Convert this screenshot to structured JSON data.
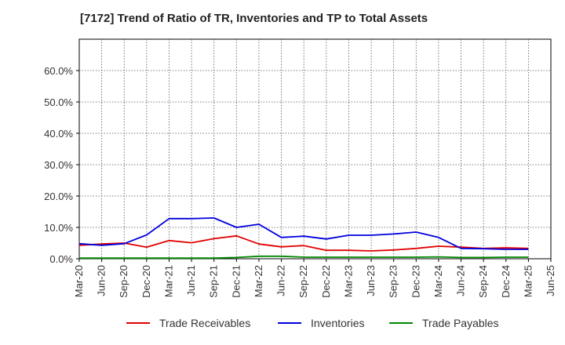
{
  "chart_data": {
    "type": "line",
    "title": "[7172]  Trend of Ratio of TR, Inventories and TP to Total Assets",
    "xlabel": "",
    "ylabel": "",
    "ylim": [
      0,
      0.7
    ],
    "yticks": [
      0,
      0.1,
      0.2,
      0.3,
      0.4,
      0.5,
      0.6
    ],
    "y_tick_labels": [
      "0.0%",
      "10.0%",
      "20.0%",
      "30.0%",
      "40.0%",
      "50.0%",
      "60.0%"
    ],
    "x_tick_labels": [
      "Mar-20",
      "Jun-20",
      "Sep-20",
      "Dec-20",
      "Mar-21",
      "Jun-21",
      "Sep-21",
      "Dec-21",
      "Mar-22",
      "Jun-22",
      "Sep-22",
      "Dec-22",
      "Mar-23",
      "Jun-23",
      "Sep-23",
      "Dec-23",
      "Mar-24",
      "Jun-24",
      "Sep-24",
      "Dec-24",
      "Mar-25",
      "Jun-25"
    ],
    "x": [
      "Mar-20",
      "Jun-20",
      "Sep-20",
      "Dec-20",
      "Mar-21",
      "Jun-21",
      "Sep-21",
      "Dec-21",
      "Mar-22",
      "Jun-22",
      "Sep-22",
      "Dec-22",
      "Mar-23",
      "Jun-23",
      "Sep-23",
      "Dec-23",
      "Mar-24",
      "Jun-24",
      "Sep-24",
      "Dec-24",
      "Mar-25"
    ],
    "grid": true,
    "legend_position": "bottom",
    "series": [
      {
        "name": "Trade Receivables",
        "color": "#e00000",
        "values": [
          0.043,
          0.047,
          0.05,
          0.037,
          0.058,
          0.051,
          0.064,
          0.073,
          0.047,
          0.038,
          0.042,
          0.027,
          0.027,
          0.025,
          0.028,
          0.033,
          0.04,
          0.037,
          0.033,
          0.035,
          0.033
        ]
      },
      {
        "name": "Inventories",
        "color": "#0000dd",
        "values": [
          0.048,
          0.043,
          0.048,
          0.076,
          0.128,
          0.128,
          0.13,
          0.1,
          0.11,
          0.068,
          0.072,
          0.063,
          0.075,
          0.075,
          0.079,
          0.085,
          0.068,
          0.033,
          0.032,
          0.03,
          0.03
        ]
      },
      {
        "name": "Trade Payables",
        "color": "#008800",
        "values": [
          0.002,
          0.002,
          0.002,
          0.002,
          0.002,
          0.002,
          0.002,
          0.004,
          0.008,
          0.008,
          0.005,
          0.005,
          0.005,
          0.005,
          0.005,
          0.005,
          0.006,
          0.004,
          0.004,
          0.005,
          0.005
        ]
      }
    ]
  }
}
